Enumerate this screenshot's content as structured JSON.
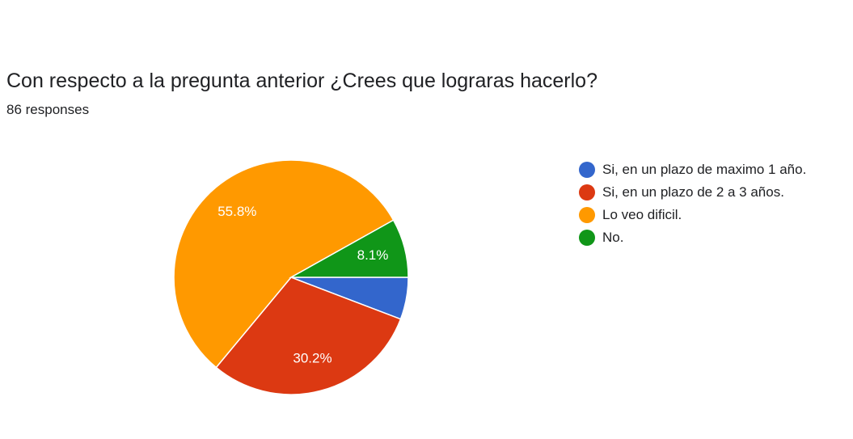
{
  "header": {
    "title": "Con respecto a la pregunta anterior ¿Crees que lograras hacerlo?",
    "responses": "86 responses"
  },
  "chart_data": {
    "type": "pie",
    "title": "Con respecto a la pregunta anterior ¿Crees que lograras hacerlo?",
    "categories": [
      "Si, en un plazo de maximo 1 año.",
      "Si, en un plazo de 2 a 3 años.",
      "Lo veo dificil.",
      "No."
    ],
    "values": [
      5.8,
      30.2,
      55.8,
      8.1
    ],
    "labels": [
      "",
      "30.2%",
      "55.8%",
      "8.1%"
    ],
    "colors": [
      "#3366cc",
      "#dc3912",
      "#ff9900",
      "#109618"
    ],
    "legend_position": "right"
  }
}
